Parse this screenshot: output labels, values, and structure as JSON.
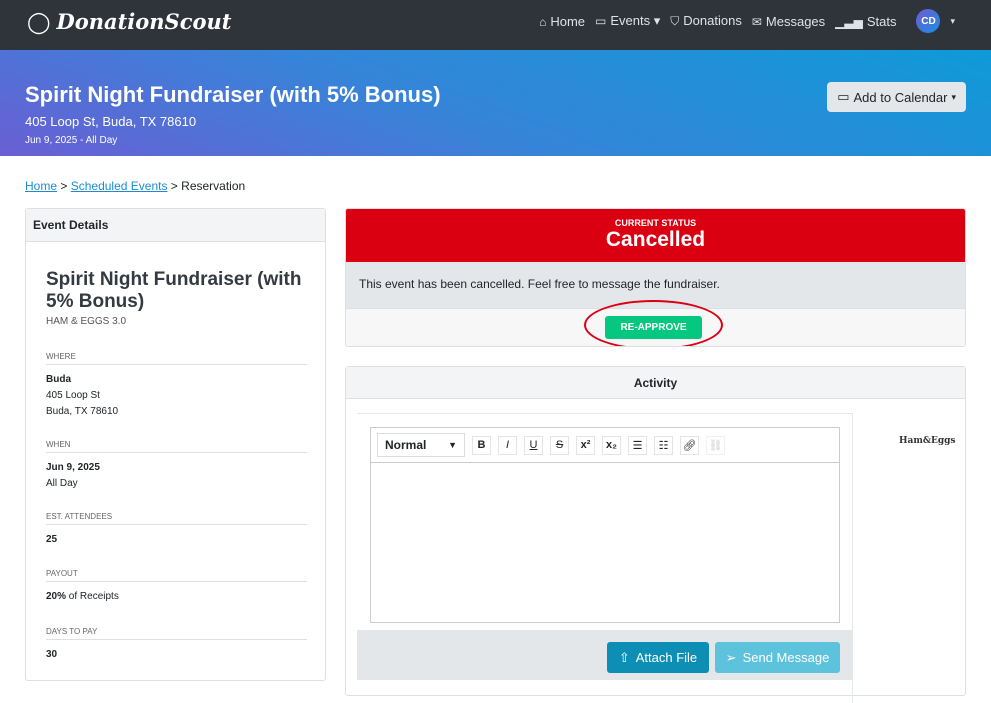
{
  "nav": {
    "brand": "DonationScout",
    "items": [
      {
        "label": "Home",
        "icon": "home-icon"
      },
      {
        "label": "Events",
        "icon": "calendar-icon",
        "dropdown": true
      },
      {
        "label": "Donations",
        "icon": "bag-icon"
      },
      {
        "label": "Messages",
        "icon": "envelope-icon"
      },
      {
        "label": "Stats",
        "icon": "bar-chart-icon"
      }
    ],
    "avatar": "CD"
  },
  "hero": {
    "title": "Spirit Night Fundraiser (with 5% Bonus)",
    "address": "405 Loop St, Buda, TX 78610",
    "date": "Jun 9, 2025 - All Day",
    "add_calendar": "Add to Calendar"
  },
  "breadcrumb": {
    "home": "Home",
    "scheduled": "Scheduled Events",
    "current": "Reservation",
    "sep": ">"
  },
  "details": {
    "header": "Event Details",
    "title": "Spirit Night Fundraiser (with 5% Bonus)",
    "org": "HAM & EGGS 3.0",
    "where_label": "WHERE",
    "where_city": "Buda",
    "where_street": "405 Loop St",
    "where_citystate": "Buda, TX 78610",
    "when_label": "WHEN",
    "when_date": "Jun 9, 2025",
    "when_time": "All Day",
    "attendees_label": "EST. ATTENDEES",
    "attendees": "25",
    "payout_label": "PAYOUT",
    "payout_value": "20%",
    "payout_suffix": " of Receipts",
    "days_label": "DAYS TO PAY",
    "days": "30"
  },
  "status": {
    "caption": "CURRENT STATUS",
    "value": "Cancelled",
    "message": "This event has been cancelled. Feel free to message the fundraiser.",
    "reapprove": "RE-APPROVE",
    "color": "#db0011"
  },
  "activity": {
    "header": "Activity",
    "format": "Normal",
    "attach": "Attach File",
    "send": "Send Message",
    "logo": "Ham&Eggs"
  }
}
